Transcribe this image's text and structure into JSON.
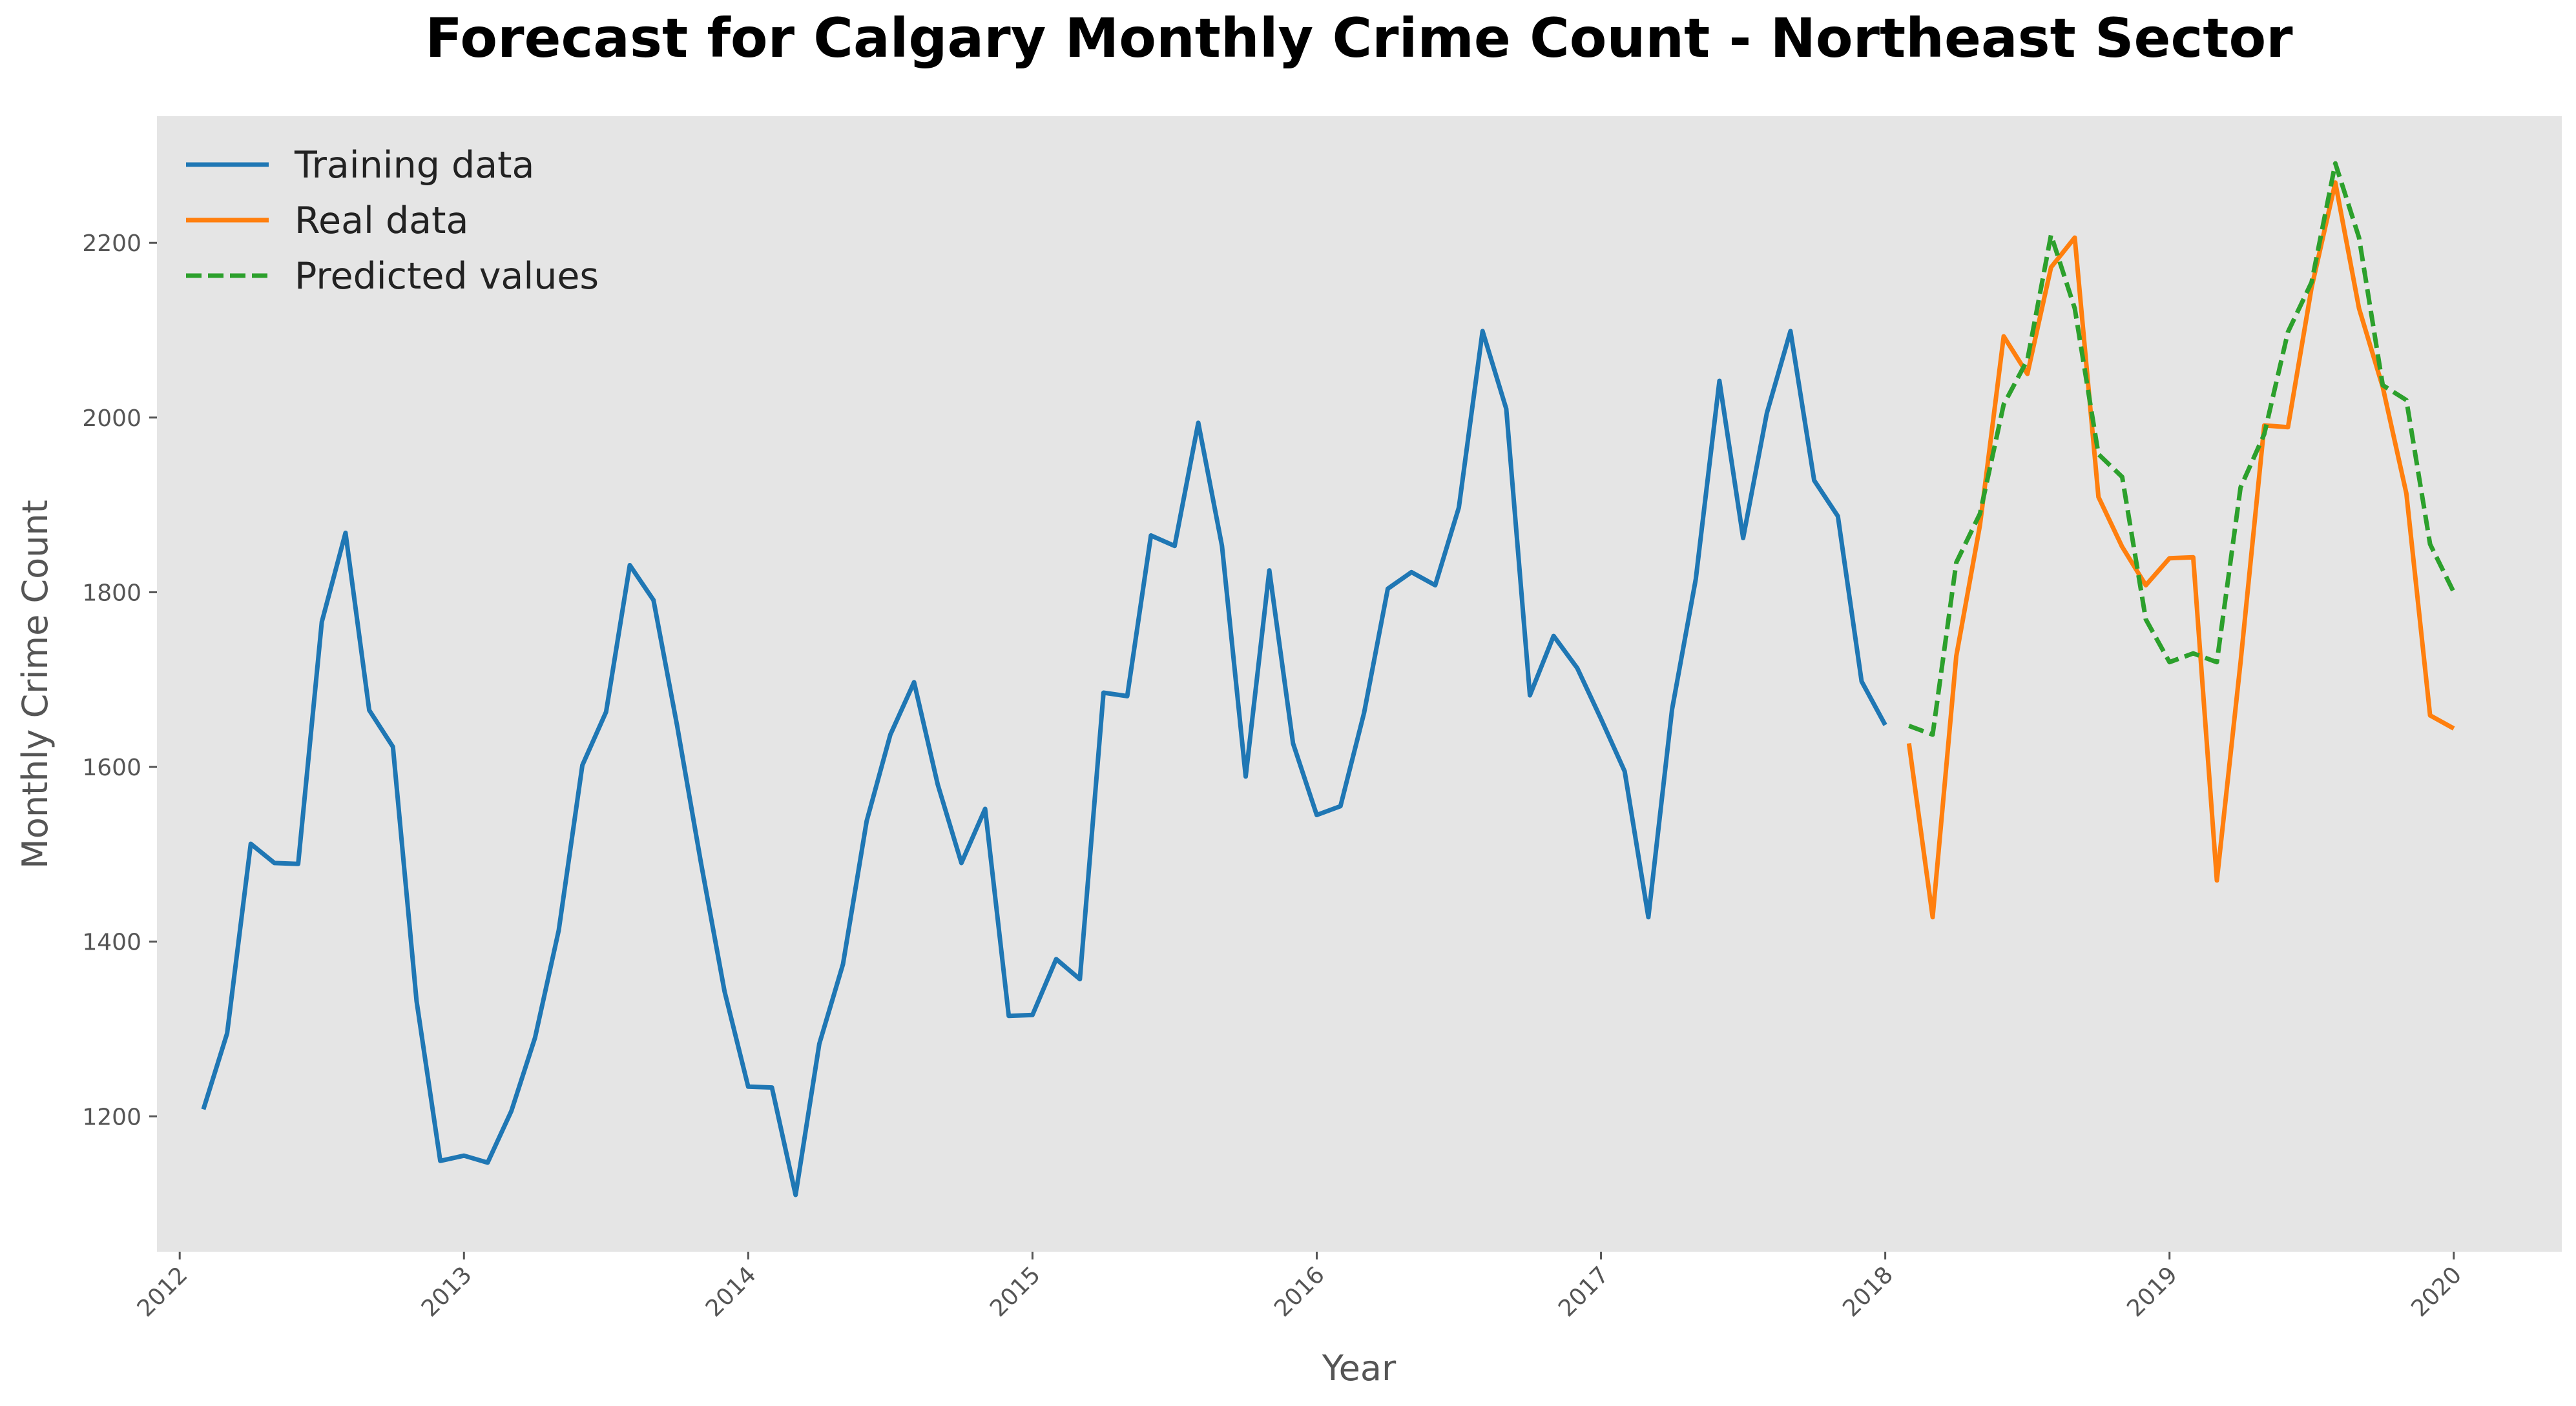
{
  "chart_data": {
    "type": "line",
    "title": "Forecast for Calgary Monthly Crime Count - Northeast Sector",
    "xlabel": "Year",
    "ylabel": "Monthly Crime Count",
    "xlim": [
      2011.92,
      2020.38
    ],
    "ylim": [
      1045,
      2345
    ],
    "x_ticks": [
      "2012",
      "2013",
      "2014",
      "2015",
      "2016",
      "2017",
      "2018",
      "2019",
      "2020"
    ],
    "y_ticks": [
      "1200",
      "1400",
      "1600",
      "1800",
      "2000",
      "2200"
    ],
    "grid": false,
    "legend_placement": "top-left",
    "background": "#e5e5e5",
    "series": [
      {
        "name": "Training data",
        "color": "#1f77b4",
        "style": "solid",
        "start": "2012-02",
        "values": [
          1208,
          1295,
          1512,
          1490,
          1489,
          1766,
          1868,
          1665,
          1623,
          1332,
          1149,
          1155,
          1147,
          1206,
          1290,
          1413,
          1602,
          1663,
          1831,
          1791,
          1647,
          1491,
          1343,
          1234,
          1233,
          1110,
          1283,
          1374,
          1538,
          1637,
          1697,
          1580,
          1490,
          1552,
          1315,
          1316,
          1380,
          1357,
          1685,
          1681,
          1865,
          1853,
          1994,
          1853,
          1589,
          1825,
          1627,
          1545,
          1555,
          1662,
          1804,
          1823,
          1808,
          1897,
          2099,
          2010,
          1682,
          1750,
          1713,
          1655,
          1595,
          1428,
          1666,
          1815,
          2042,
          1862,
          2005,
          2099,
          1928,
          1887,
          1698,
          1648
        ]
      },
      {
        "name": "Real data",
        "color": "#ff7f0e",
        "style": "solid",
        "start": "2018-02",
        "values": [
          1627,
          1428,
          1727,
          1877,
          2093,
          2050,
          2172,
          2206,
          1909,
          1852,
          1808,
          1839,
          1840,
          1470,
          1720,
          1991,
          1989,
          2149,
          2269,
          2125,
          2035,
          1913,
          1659,
          1644
        ]
      },
      {
        "name": "Predicted values",
        "color": "#2ca02c",
        "style": "dashed",
        "start": "2018-02",
        "values": [
          1647,
          1637,
          1834,
          1890,
          2015,
          2066,
          2209,
          2125,
          1958,
          1932,
          1769,
          1720,
          1730,
          1720,
          1920,
          1981,
          2098,
          2155,
          2291,
          2206,
          2037,
          2020,
          1855,
          1800
        ]
      }
    ]
  }
}
